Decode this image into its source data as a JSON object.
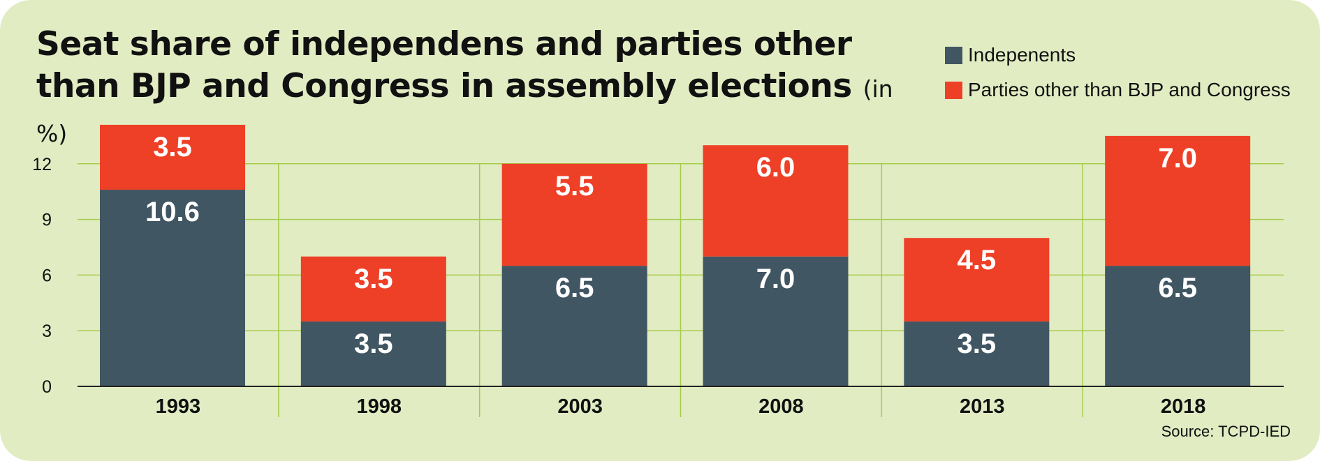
{
  "chart_data": {
    "type": "bar",
    "stacked": true,
    "title": "Seat share of independens and parties other than BJP and Congress in assembly elections",
    "unit": "(in %)",
    "categories": [
      "1993",
      "1998",
      "2003",
      "2008",
      "2013",
      "2018"
    ],
    "series": [
      {
        "name": "Indepenents",
        "color": "#415663",
        "values": [
          10.6,
          3.5,
          6.5,
          7.0,
          3.5,
          6.5
        ]
      },
      {
        "name": "Parties other than BJP and Congress",
        "color": "#ee4027",
        "values": [
          3.5,
          3.5,
          5.5,
          6.0,
          4.5,
          7.0
        ]
      }
    ],
    "y_ticks": [
      "0",
      "3",
      "6",
      "9",
      "12"
    ],
    "ylim": [
      0,
      14.1
    ],
    "grid": true,
    "legend_position": "top-right",
    "source": "Source: TCPD-IED"
  }
}
